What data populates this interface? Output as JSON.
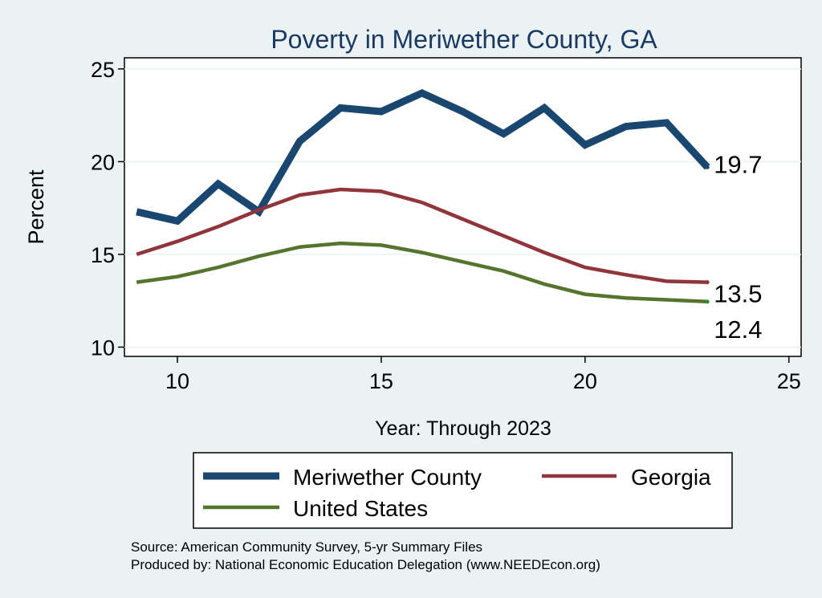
{
  "chart_data": {
    "type": "line",
    "title": "Poverty in Meriwether County, GA",
    "xlabel": "Year: Through 2023",
    "ylabel": "Percent",
    "xlim": [
      8.7,
      25.3
    ],
    "ylim": [
      9.5,
      25.6
    ],
    "x_ticks": [
      10,
      15,
      20,
      25
    ],
    "y_ticks": [
      10,
      15,
      20,
      25
    ],
    "grid": "horizontal",
    "legend_position": "bottom",
    "x": [
      9,
      10,
      11,
      12,
      13,
      14,
      15,
      16,
      17,
      18,
      19,
      20,
      21,
      22,
      23
    ],
    "series": [
      {
        "name": "Meriwether County",
        "color": "#1a476f",
        "values": [
          17.3,
          16.8,
          18.8,
          17.3,
          21.1,
          22.9,
          22.7,
          23.7,
          22.7,
          21.5,
          22.9,
          20.9,
          21.9,
          22.1,
          19.7
        ],
        "end_label": "19.7"
      },
      {
        "name": "Georgia",
        "color": "#90353b",
        "values": [
          15.0,
          15.7,
          16.5,
          17.4,
          18.2,
          18.5,
          18.4,
          17.8,
          16.9,
          16.0,
          15.1,
          14.3,
          13.9,
          13.55,
          13.5
        ],
        "end_label": "13.5"
      },
      {
        "name": "United States",
        "color": "#55752f",
        "values": [
          13.5,
          13.8,
          14.3,
          14.9,
          15.4,
          15.6,
          15.5,
          15.1,
          14.6,
          14.1,
          13.4,
          12.85,
          12.65,
          12.55,
          12.45
        ],
        "end_label": "12.4"
      }
    ],
    "notes": [
      "Source: American Community Survey, 5-yr Summary Files",
      "Produced by: National Economic Education Delegation (www.NEEDEcon.org)"
    ]
  }
}
